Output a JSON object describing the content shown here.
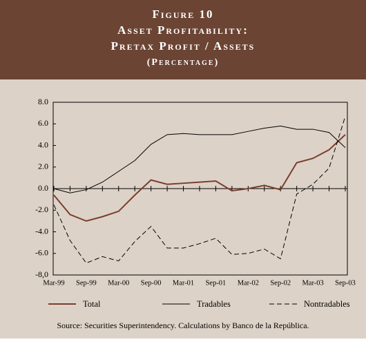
{
  "chart_data": {
    "type": "line",
    "title": "Figure 10",
    "subtitle_lines": [
      "Asset Profitability:",
      "Pretax Profit / Assets",
      "(Percentage)"
    ],
    "source": "Source: Securities Superintendency.  Calculations by Banco de la República.",
    "categories": [
      "Mar-99",
      null,
      "Sep-99",
      null,
      "Mar-00",
      null,
      "Sep-00",
      null,
      "Mar-01",
      null,
      "Sep-01",
      null,
      "Mar-02",
      null,
      "Sep-02",
      null,
      "Mar-03",
      null,
      "Sep-03"
    ],
    "series": [
      {
        "name": "Total",
        "color": "#7a3e2e",
        "line_style": "solid",
        "values": [
          -0.6,
          -2.4,
          -3.0,
          -2.6,
          -2.1,
          -0.6,
          0.8,
          0.4,
          0.5,
          0.6,
          0.7,
          -0.2,
          0.0,
          0.3,
          -0.1,
          2.4,
          2.8,
          3.6,
          5.0
        ]
      },
      {
        "name": "Tradables",
        "color": "#000000",
        "line_style": "solid",
        "values": [
          0.0,
          -0.4,
          -0.1,
          0.6,
          1.6,
          2.6,
          4.1,
          5.0,
          5.1,
          5.0,
          5.0,
          5.0,
          5.3,
          5.6,
          5.8,
          5.5,
          5.5,
          5.2,
          3.8
        ]
      },
      {
        "name": "Nontradables",
        "color": "#000000",
        "line_style": "dashed",
        "values": [
          -1.5,
          -4.8,
          -6.9,
          -6.3,
          -6.7,
          -4.9,
          -3.5,
          -5.5,
          -5.5,
          -5.1,
          -4.6,
          -6.1,
          -6.0,
          -5.6,
          -6.5,
          -0.5,
          0.4,
          1.9,
          6.7
        ]
      }
    ],
    "ylim": [
      -8,
      8
    ],
    "yticks": [
      {
        "value": 8,
        "label": "8.0"
      },
      {
        "value": 6,
        "label": "6.0"
      },
      {
        "value": 4,
        "label": "4.0"
      },
      {
        "value": 2,
        "label": "2.0"
      },
      {
        "value": 0,
        "label": "0.0"
      },
      {
        "value": -2,
        "label": "-2.0"
      },
      {
        "value": -4,
        "label": "-4.0"
      },
      {
        "value": -6,
        "label": "-6.0"
      },
      {
        "value": -8,
        "label": "-8,0"
      }
    ],
    "grid": false,
    "legend": "bottom"
  }
}
